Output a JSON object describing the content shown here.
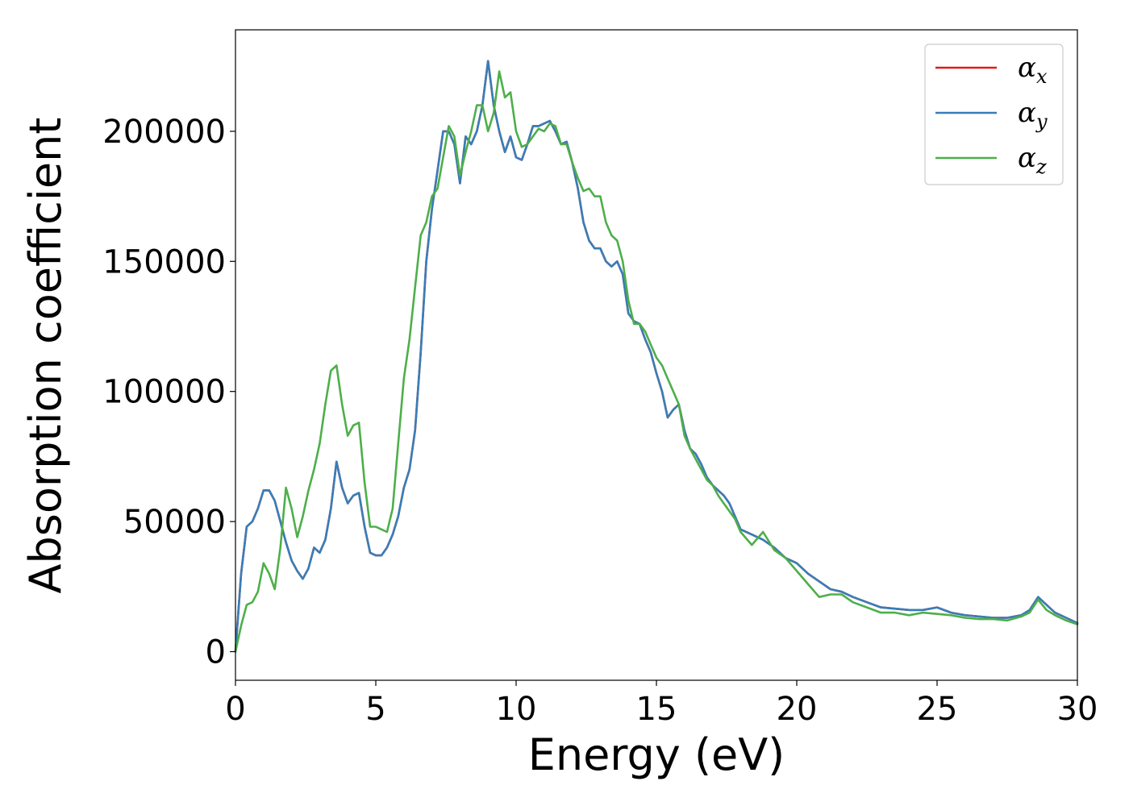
{
  "chart_data": {
    "type": "line",
    "xlabel": "Energy (eV)",
    "ylabel": "Absorption coefficient",
    "xlim": [
      0,
      30
    ],
    "ylim": [
      -11000,
      239000
    ],
    "xticks": [
      0,
      5,
      10,
      15,
      20,
      25,
      30
    ],
    "yticks": [
      0,
      50000,
      100000,
      150000,
      200000
    ],
    "grid": false,
    "legend_position": "top-right",
    "series": [
      {
        "name": "α_x",
        "label_main": "α",
        "label_sub": "x",
        "color": "#e41a1c",
        "x": [
          0,
          0.2,
          0.4,
          0.6,
          0.8,
          1.0,
          1.2,
          1.4,
          1.6,
          1.8,
          2.0,
          2.2,
          2.4,
          2.6,
          2.8,
          3.0,
          3.2,
          3.4,
          3.6,
          3.8,
          4.0,
          4.2,
          4.4,
          4.6,
          4.8,
          5.0,
          5.2,
          5.4,
          5.6,
          5.8,
          6.0,
          6.2,
          6.4,
          6.6,
          6.8,
          7.0,
          7.2,
          7.4,
          7.6,
          7.8,
          8.0,
          8.2,
          8.4,
          8.6,
          8.8,
          9.0,
          9.2,
          9.4,
          9.6,
          9.8,
          10.0,
          10.2,
          10.4,
          10.6,
          10.8,
          11.0,
          11.2,
          11.4,
          11.6,
          11.8,
          12.0,
          12.2,
          12.4,
          12.6,
          12.8,
          13.0,
          13.2,
          13.4,
          13.6,
          13.8,
          14.0,
          14.2,
          14.4,
          14.6,
          14.8,
          15.0,
          15.2,
          15.4,
          15.6,
          15.8,
          16.0,
          16.2,
          16.4,
          16.6,
          16.8,
          17.0,
          17.2,
          17.4,
          17.6,
          17.8,
          18.0,
          18.4,
          18.8,
          19.2,
          19.6,
          20.0,
          20.4,
          20.8,
          21.2,
          21.6,
          22.0,
          22.5,
          23.0,
          23.5,
          24.0,
          24.5,
          25.0,
          25.5,
          26.0,
          26.5,
          27.0,
          27.5,
          28.0,
          28.3,
          28.6,
          28.9,
          29.2,
          29.6,
          30.0
        ],
        "y": [
          0,
          30000,
          48000,
          50000,
          55000,
          62000,
          62000,
          58000,
          50000,
          42000,
          35000,
          31000,
          28000,
          32000,
          40000,
          38000,
          43000,
          55000,
          73000,
          63000,
          57000,
          60000,
          61000,
          48000,
          38000,
          37000,
          37000,
          40000,
          45000,
          52000,
          63000,
          70000,
          85000,
          115000,
          150000,
          170000,
          185000,
          200000,
          200000,
          195000,
          180000,
          198000,
          195000,
          200000,
          210000,
          227000,
          210000,
          200000,
          192000,
          198000,
          190000,
          189000,
          195000,
          202000,
          202000,
          203000,
          204000,
          200000,
          195000,
          196000,
          188000,
          178000,
          165000,
          158000,
          155000,
          155000,
          150000,
          148000,
          150000,
          145000,
          130000,
          127000,
          126000,
          120000,
          115000,
          107000,
          100000,
          90000,
          93000,
          95000,
          85000,
          78000,
          76000,
          72000,
          67000,
          64000,
          62000,
          60000,
          57000,
          52000,
          47000,
          45000,
          43000,
          40000,
          36000,
          34000,
          30000,
          27000,
          24000,
          23000,
          21000,
          19000,
          17000,
          16500,
          16000,
          16000,
          17000,
          15000,
          14000,
          13500,
          13000,
          13000,
          14000,
          16000,
          21000,
          18000,
          15000,
          13000,
          11000
        ]
      },
      {
        "name": "α_y",
        "label_main": "α",
        "label_sub": "y",
        "color": "#377eb8",
        "x": [
          0,
          0.2,
          0.4,
          0.6,
          0.8,
          1.0,
          1.2,
          1.4,
          1.6,
          1.8,
          2.0,
          2.2,
          2.4,
          2.6,
          2.8,
          3.0,
          3.2,
          3.4,
          3.6,
          3.8,
          4.0,
          4.2,
          4.4,
          4.6,
          4.8,
          5.0,
          5.2,
          5.4,
          5.6,
          5.8,
          6.0,
          6.2,
          6.4,
          6.6,
          6.8,
          7.0,
          7.2,
          7.4,
          7.6,
          7.8,
          8.0,
          8.2,
          8.4,
          8.6,
          8.8,
          9.0,
          9.2,
          9.4,
          9.6,
          9.8,
          10.0,
          10.2,
          10.4,
          10.6,
          10.8,
          11.0,
          11.2,
          11.4,
          11.6,
          11.8,
          12.0,
          12.2,
          12.4,
          12.6,
          12.8,
          13.0,
          13.2,
          13.4,
          13.6,
          13.8,
          14.0,
          14.2,
          14.4,
          14.6,
          14.8,
          15.0,
          15.2,
          15.4,
          15.6,
          15.8,
          16.0,
          16.2,
          16.4,
          16.6,
          16.8,
          17.0,
          17.2,
          17.4,
          17.6,
          17.8,
          18.0,
          18.4,
          18.8,
          19.2,
          19.6,
          20.0,
          20.4,
          20.8,
          21.2,
          21.6,
          22.0,
          22.5,
          23.0,
          23.5,
          24.0,
          24.5,
          25.0,
          25.5,
          26.0,
          26.5,
          27.0,
          27.5,
          28.0,
          28.3,
          28.6,
          28.9,
          29.2,
          29.6,
          30.0
        ],
        "y": [
          0,
          30000,
          48000,
          50000,
          55000,
          62000,
          62000,
          58000,
          50000,
          42000,
          35000,
          31000,
          28000,
          32000,
          40000,
          38000,
          43000,
          55000,
          73000,
          63000,
          57000,
          60000,
          61000,
          48000,
          38000,
          37000,
          37000,
          40000,
          45000,
          52000,
          63000,
          70000,
          85000,
          115000,
          150000,
          170000,
          185000,
          200000,
          200000,
          195000,
          180000,
          198000,
          195000,
          200000,
          210000,
          227000,
          210000,
          200000,
          192000,
          198000,
          190000,
          189000,
          195000,
          202000,
          202000,
          203000,
          204000,
          200000,
          195000,
          196000,
          188000,
          178000,
          165000,
          158000,
          155000,
          155000,
          150000,
          148000,
          150000,
          145000,
          130000,
          127000,
          126000,
          120000,
          115000,
          107000,
          100000,
          90000,
          93000,
          95000,
          85000,
          78000,
          76000,
          72000,
          67000,
          64000,
          62000,
          60000,
          57000,
          52000,
          47000,
          45000,
          43000,
          40000,
          36000,
          34000,
          30000,
          27000,
          24000,
          23000,
          21000,
          19000,
          17000,
          16500,
          16000,
          16000,
          17000,
          15000,
          14000,
          13500,
          13000,
          13000,
          14000,
          16000,
          21000,
          18000,
          15000,
          13000,
          11000
        ]
      },
      {
        "name": "α_z",
        "label_main": "α",
        "label_sub": "z",
        "color": "#4daf4a",
        "x": [
          0,
          0.2,
          0.4,
          0.6,
          0.8,
          1.0,
          1.2,
          1.4,
          1.6,
          1.8,
          2.0,
          2.2,
          2.4,
          2.6,
          2.8,
          3.0,
          3.2,
          3.4,
          3.6,
          3.8,
          4.0,
          4.2,
          4.4,
          4.6,
          4.8,
          5.0,
          5.2,
          5.4,
          5.6,
          5.8,
          6.0,
          6.2,
          6.4,
          6.6,
          6.8,
          7.0,
          7.2,
          7.4,
          7.6,
          7.8,
          8.0,
          8.2,
          8.4,
          8.6,
          8.8,
          9.0,
          9.2,
          9.4,
          9.6,
          9.8,
          10.0,
          10.2,
          10.4,
          10.6,
          10.8,
          11.0,
          11.2,
          11.4,
          11.6,
          11.8,
          12.0,
          12.2,
          12.4,
          12.6,
          12.8,
          13.0,
          13.2,
          13.4,
          13.6,
          13.8,
          14.0,
          14.2,
          14.4,
          14.6,
          14.8,
          15.0,
          15.2,
          15.4,
          15.6,
          15.8,
          16.0,
          16.2,
          16.4,
          16.6,
          16.8,
          17.0,
          17.2,
          17.4,
          17.6,
          17.8,
          18.0,
          18.4,
          18.8,
          19.2,
          19.6,
          20.0,
          20.4,
          20.8,
          21.2,
          21.6,
          22.0,
          22.5,
          23.0,
          23.5,
          24.0,
          24.5,
          25.0,
          25.5,
          26.0,
          26.5,
          27.0,
          27.5,
          28.0,
          28.3,
          28.6,
          28.9,
          29.2,
          29.6,
          30.0
        ],
        "y": [
          0,
          10000,
          18000,
          19000,
          23000,
          34000,
          30000,
          24000,
          40000,
          63000,
          55000,
          44000,
          52000,
          62000,
          70000,
          80000,
          95000,
          108000,
          110000,
          95000,
          83000,
          87000,
          88000,
          65000,
          48000,
          48000,
          47000,
          46000,
          55000,
          80000,
          105000,
          120000,
          140000,
          160000,
          165000,
          175000,
          178000,
          190000,
          202000,
          198000,
          183000,
          192000,
          200000,
          210000,
          210000,
          200000,
          207000,
          223000,
          213000,
          215000,
          200000,
          194000,
          195000,
          198000,
          201000,
          200000,
          203000,
          202000,
          195000,
          195000,
          188000,
          182000,
          177000,
          178000,
          175000,
          175000,
          165000,
          160000,
          158000,
          150000,
          135000,
          126000,
          126000,
          123000,
          118000,
          113000,
          110000,
          105000,
          100000,
          95000,
          83000,
          78000,
          74000,
          70000,
          66000,
          64000,
          60000,
          57000,
          54000,
          51000,
          46000,
          41000,
          46000,
          39000,
          36000,
          31000,
          26000,
          21000,
          22000,
          22000,
          19000,
          17000,
          15000,
          15000,
          14000,
          15000,
          14500,
          14000,
          13000,
          12500,
          12500,
          12000,
          13500,
          15000,
          20000,
          16000,
          14000,
          12000,
          10500
        ]
      }
    ]
  }
}
